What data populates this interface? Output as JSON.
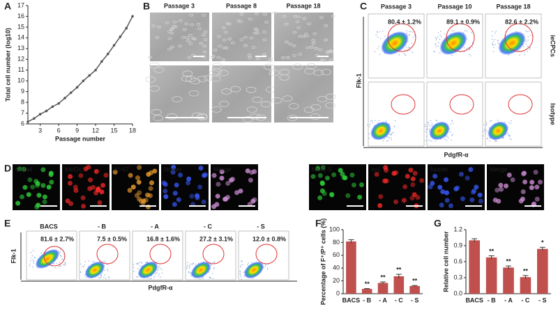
{
  "panel_labels": [
    "A",
    "B",
    "C",
    "D",
    "E",
    "F",
    "G"
  ],
  "panel_b": {
    "passages": [
      "Passage 3",
      "Passage 8",
      "Passage 18"
    ]
  },
  "panel_c": {
    "passages": [
      "Passage 3",
      "Passage 10",
      "Passage 18"
    ],
    "percentages": [
      "80.4 ± 1.2%",
      "89.1 ± 0.9%",
      "82.6 ± 2.2%"
    ],
    "rows": [
      "ieCPCs",
      "Isotype"
    ],
    "y_label": "Flk-1",
    "x_label": "PdgfR-α"
  },
  "panel_d": {
    "group1": [
      "Gata4",
      "Mef2c",
      "Ki-67",
      "Nuclei",
      "Merge"
    ],
    "group1_colors": [
      "#2fd23a",
      "#ff2a2a",
      "#f0a030",
      "#3a5cff",
      "#ffffff"
    ],
    "group2": [
      "Nkx2-5",
      "Isl1",
      "Nuclei",
      "Merge"
    ],
    "group2_colors": [
      "#2fd23a",
      "#ff2a2a",
      "#3a5cff",
      "#ffffff"
    ]
  },
  "panel_e": {
    "conditions": [
      "BACS",
      "- B",
      "- A",
      "- C",
      "- S"
    ],
    "percentages": [
      "81.6 ± 2.7%",
      "7.5 ± 0.5%",
      "16.8 ± 1.6%",
      "27.2 ± 3.1%",
      "12.0 ± 0.8%"
    ],
    "y_label": "Flk-1",
    "x_label": "PdgfR-α"
  },
  "chart_data": [
    {
      "type": "line",
      "y_label": "Total cell number (log10)",
      "x_label": "Passage number",
      "x": [
        1,
        2,
        3,
        4,
        5,
        6,
        7,
        8,
        9,
        10,
        11,
        12,
        13,
        14,
        15,
        16,
        17,
        18
      ],
      "values": [
        6.2,
        6.5,
        6.9,
        7.2,
        7.6,
        7.9,
        8.4,
        8.9,
        9.4,
        10.0,
        10.5,
        11.0,
        11.8,
        12.5,
        13.3,
        14.1,
        14.9,
        16.0
      ],
      "color": "#555555",
      "xlim": [
        1,
        18
      ],
      "xticks": [
        3,
        6,
        9,
        12,
        15,
        18
      ],
      "ylim": [
        6,
        17
      ],
      "yticks": [
        6,
        7,
        8,
        9,
        10,
        11,
        12,
        13,
        14,
        15,
        16,
        17
      ]
    },
    {
      "type": "bar",
      "y_label": "Percentage of F⁺/P⁺ cells (%)",
      "categories": [
        "BACS",
        "- B",
        "- A",
        "- C",
        "- S"
      ],
      "values": [
        81.6,
        7.5,
        16.8,
        27.2,
        12.0
      ],
      "errors": [
        2.7,
        0.5,
        1.6,
        3.1,
        0.8
      ],
      "annotations": [
        null,
        "**",
        "**",
        "**",
        "**"
      ],
      "color": "#c0504d",
      "ylim": [
        0,
        100
      ],
      "yticks": [
        0,
        20,
        40,
        60,
        80,
        100
      ]
    },
    {
      "type": "bar",
      "y_label": "Relative cell number",
      "categories": [
        "BACS",
        "- B",
        "- A",
        "- C",
        "- S"
      ],
      "values": [
        1.0,
        0.68,
        0.49,
        0.31,
        0.84
      ],
      "errors": [
        0.03,
        0.03,
        0.03,
        0.03,
        0.03
      ],
      "annotations": [
        null,
        "**",
        "**",
        "**",
        "*"
      ],
      "color": "#c0504d",
      "ylim": [
        0,
        1.2
      ],
      "yticks": [
        {
          "value": 0,
          "label": "0.0"
        },
        0.3,
        0.6,
        0.9,
        1.2
      ]
    }
  ]
}
